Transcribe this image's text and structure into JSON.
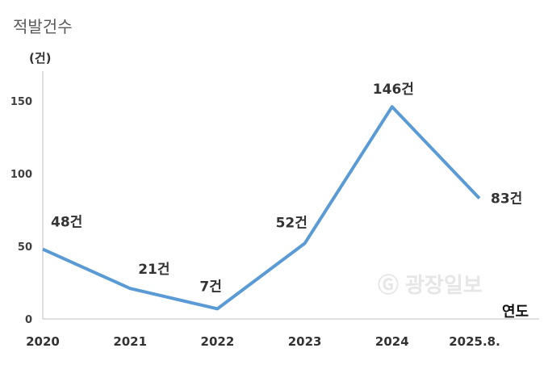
{
  "chart_data": {
    "type": "line",
    "title": "적발건수",
    "ylabel": "(건)",
    "xlabel": "연도",
    "categories": [
      "2020",
      "2021",
      "2022",
      "2023",
      "2024",
      "2025.8."
    ],
    "values": [
      48,
      21,
      7,
      52,
      146,
      83
    ],
    "data_labels": [
      "48건",
      "21건",
      "7건",
      "52건",
      "146건",
      "83건"
    ],
    "yticks": [
      0,
      50,
      100,
      150
    ],
    "ytick_labels": [
      "0",
      "50",
      "100",
      "150"
    ],
    "ylim": [
      0,
      170
    ],
    "grid": false,
    "line_color": "#5b9bd5"
  },
  "watermark": "광장일보"
}
